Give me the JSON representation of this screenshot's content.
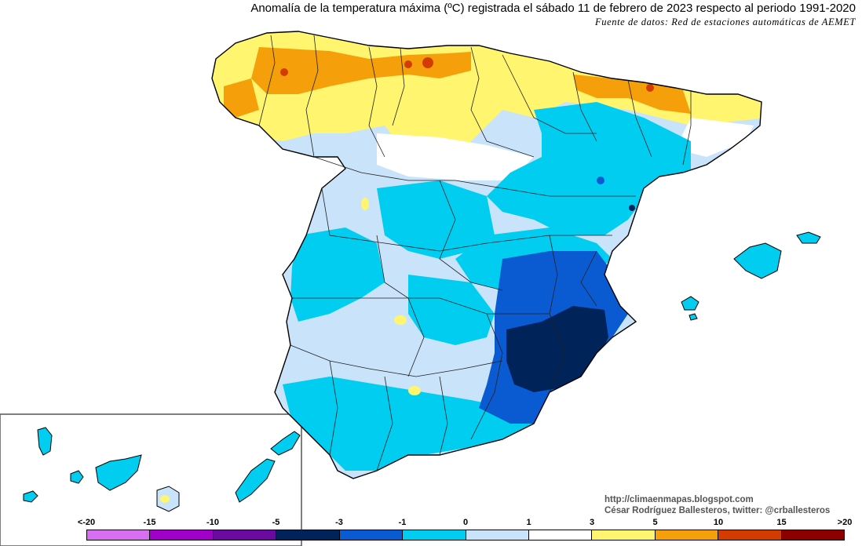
{
  "title": "Anomalía de la temperatura máxima (ºC) registrada el sábado 11 de febrero de 2023 respecto al periodo 1991-2020",
  "source": "Fuente de datos: Red de estaciones automáticas de AEMET",
  "credits": {
    "blog": "http://climaenmapas.blogspot.com",
    "author": "César Rodríguez Ballesteros, twitter: @crballesteros"
  },
  "legend": {
    "labels": [
      "<-20",
      "-15",
      "-10",
      "-5",
      "-3",
      "-1",
      "0",
      "1",
      "3",
      "5",
      "10",
      "15",
      ">20"
    ],
    "colors": [
      "#d86ef0",
      "#a000c8",
      "#6a0aa0",
      "#00245a",
      "#0a5ad2",
      "#00cdf0",
      "#c9e4fa",
      "#ffffff",
      "#fff56e",
      "#f5a00a",
      "#d23c00",
      "#8c0000",
      "#643c00"
    ]
  },
  "map": {
    "colors": {
      "c_n20": "#d86ef0",
      "c_n15": "#a000c8",
      "c_n10": "#6a0aa0",
      "c_n5": "#00245a",
      "c_n3": "#0a5ad2",
      "c_n1": "#00cdf0",
      "c_0": "#c9e4fa",
      "c_p1": "#ffffff",
      "c_p3": "#fff56e",
      "c_p5": "#f5a00a",
      "c_p10": "#d23c00",
      "c_p15": "#8c0000",
      "c_p20": "#643c00",
      "border": "#000000",
      "province": "#202020"
    }
  }
}
